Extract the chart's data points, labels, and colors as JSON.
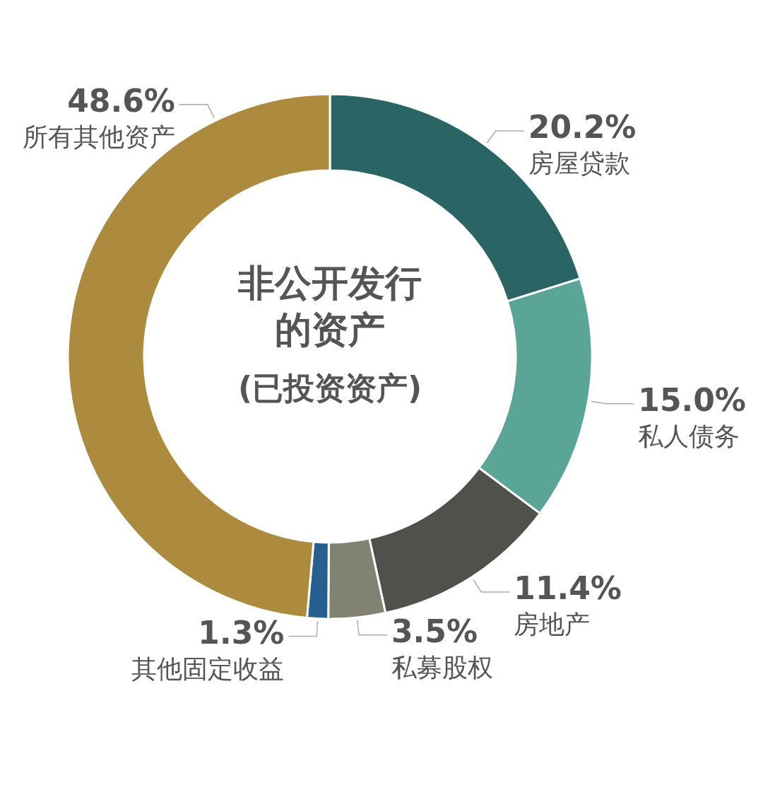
{
  "chart_data": {
    "type": "donut",
    "title": "非公开发行的资产",
    "subtitle": "(已投资资产)",
    "categories": [
      "房屋贷款",
      "私人债务",
      "房地产",
      "私募股权",
      "其他固定收益",
      "所有其他资产"
    ],
    "values": [
      20.2,
      15.0,
      11.4,
      3.5,
      1.3,
      48.6
    ],
    "colors": [
      "#2a6464",
      "#5ba596",
      "#50514a",
      "#828273",
      "#285f91",
      "#ac8b3e"
    ],
    "value_labels": [
      "20.2%",
      "15.0%",
      "11.4%",
      "3.5%",
      "1.3%",
      "48.6%"
    ]
  }
}
